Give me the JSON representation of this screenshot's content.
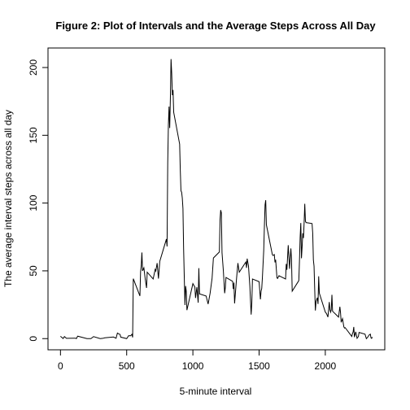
{
  "chart_data": {
    "type": "line",
    "title": "Figure 2: Plot of Intervals and the Average Steps Across All Day",
    "xlabel": "5-minute interval",
    "ylabel": "The average interval steps across all day",
    "color": "#000000",
    "x": [
      0,
      20,
      30,
      45,
      100,
      115,
      120,
      130,
      200,
      230,
      250,
      300,
      320,
      335,
      400,
      420,
      430,
      440,
      450,
      455,
      500,
      515,
      530,
      540,
      545,
      550,
      600,
      605,
      610,
      615,
      620,
      630,
      640,
      650,
      655,
      700,
      715,
      720,
      730,
      740,
      750,
      800,
      805,
      810,
      815,
      820,
      825,
      830,
      835,
      840,
      845,
      850,
      855,
      900,
      905,
      910,
      915,
      920,
      925,
      930,
      935,
      940,
      945,
      950,
      955,
      1000,
      1015,
      1020,
      1030,
      1040,
      1045,
      1050,
      1100,
      1115,
      1130,
      1145,
      1155,
      1200,
      1205,
      1210,
      1215,
      1220,
      1230,
      1240,
      1245,
      1250,
      1300,
      1305,
      1310,
      1315,
      1330,
      1340,
      1350,
      1400,
      1405,
      1410,
      1420,
      1430,
      1440,
      1445,
      1450,
      1500,
      1510,
      1515,
      1520,
      1525,
      1535,
      1540,
      1545,
      1550,
      1555,
      1600,
      1605,
      1615,
      1620,
      1625,
      1635,
      1640,
      1650,
      1700,
      1705,
      1710,
      1720,
      1730,
      1740,
      1745,
      1750,
      1800,
      1805,
      1810,
      1815,
      1820,
      1825,
      1830,
      1835,
      1840,
      1845,
      1850,
      1855,
      1900,
      1905,
      1910,
      1915,
      1920,
      1925,
      1930,
      1940,
      1945,
      1950,
      1955,
      2000,
      2010,
      2020,
      2030,
      2035,
      2040,
      2045,
      2050,
      2055,
      2100,
      2110,
      2115,
      2120,
      2130,
      2140,
      2145,
      2150,
      2200,
      2205,
      2210,
      2215,
      2220,
      2230,
      2240,
      2250,
      2255,
      2300,
      2310,
      2320,
      2330,
      2340,
      2345,
      2350,
      2355
    ],
    "values": [
      1.7,
      0.1,
      1.5,
      0.2,
      0.3,
      0.3,
      0,
      1.8,
      0,
      0,
      1.5,
      0,
      0.2,
      0.6,
      1.2,
      0.3,
      4.1,
      3.5,
      3.1,
      1.1,
      0,
      2.2,
      2.1,
      3.2,
      0.9,
      44.2,
      31.5,
      49.3,
      53.8,
      63.5,
      50,
      52.2,
      44,
      37.4,
      49,
      44,
      51,
      49.9,
      55.7,
      44.3,
      57,
      73.4,
      68,
      129.4,
      157.5,
      171.2,
      155.4,
      177.3,
      206.2,
      195.9,
      179.6,
      183.4,
      167,
      143.5,
      124,
      109,
      108,
      103.7,
      95.9,
      66.2,
      45.2,
      24.8,
      38.8,
      35,
      21,
      40.6,
      38,
      30,
      37.9,
      26.5,
      52,
      33,
      31.4,
      25.5,
      33.4,
      44.6,
      59.5,
      63.9,
      87.7,
      94.8,
      92.8,
      63.4,
      50.2,
      33.5,
      37.7,
      45.1,
      42.3,
      36.6,
      41.3,
      26,
      44.6,
      55.7,
      49,
      56.5,
      52.2,
      59,
      53.5,
      39,
      17.7,
      26.4,
      44,
      42,
      29,
      35,
      37,
      45,
      65,
      82.9,
      98.7,
      102.1,
      84,
      62,
      61.3,
      62,
      56.3,
      58.2,
      44.7,
      44.4,
      46.4,
      44,
      55.1,
      50.8,
      68.9,
      51.5,
      66.5,
      58,
      35,
      42.8,
      57.4,
      74.7,
      85.3,
      59.3,
      67.8,
      77.7,
      74.2,
      85.3,
      99.5,
      86.6,
      85.6,
      84.9,
      77.8,
      58,
      53.4,
      36.3,
      20.7,
      27.4,
      30.2,
      25.5,
      46,
      33.5,
      19.6,
      18.3,
      15.9,
      27,
      21.3,
      19.5,
      21.3,
      32.3,
      20.2,
      15.9,
      23.5,
      19.2,
      12,
      14.7,
      8.7,
      7.8,
      8.1,
      1.6,
      3.7,
      4.8,
      8.6,
      1.1,
      5,
      0.2,
      1.6,
      4.6,
      3.3,
      0,
      1,
      2.6,
      3.3,
      0.6,
      0.2,
      1.1
    ],
    "xlim": [
      -94.2,
      2449.2
    ],
    "ylim": [
      -8.25,
      214.4
    ],
    "xticks": [
      0,
      500,
      1000,
      1500,
      2000
    ],
    "yticks": [
      0,
      50,
      100,
      150,
      200
    ]
  }
}
